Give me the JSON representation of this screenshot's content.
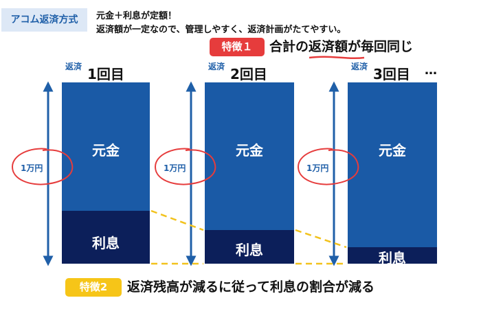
{
  "header": {
    "method_badge": "アコム返済方式",
    "line1": "元金＋利息が定額！",
    "line2": "返済額が一定なので、管理しやすく、返済計画がたてやすい。"
  },
  "feature1": {
    "badge": "特徴１",
    "text_before": "合計の",
    "text_emphasis": "返済額",
    "text_after": "が毎回同じ"
  },
  "columns": [
    {
      "prefix": "返済",
      "label": "1回目",
      "principal_label": "元金",
      "interest_label": "利息",
      "amount": "1万円",
      "interest_share": 0.29
    },
    {
      "prefix": "返済",
      "label": "2回目",
      "principal_label": "元金",
      "interest_label": "利息",
      "amount": "1万円",
      "interest_share": 0.185
    },
    {
      "prefix": "返済",
      "label": "3回目",
      "principal_label": "元金",
      "interest_label": "利息",
      "amount": "1万円",
      "interest_share": 0.09
    }
  ],
  "ellipsis": "…",
  "feature2": {
    "badge": "特徴2",
    "text": "返済残高が減るに従って利息の割合が減る"
  },
  "colors": {
    "principal": "#1a5aa6",
    "interest": "#0c1f5a",
    "accent_blue": "#1f5fa8",
    "red": "#e63c3c",
    "yellow": "#f6c518",
    "dashed_line": "#f2c21c"
  }
}
